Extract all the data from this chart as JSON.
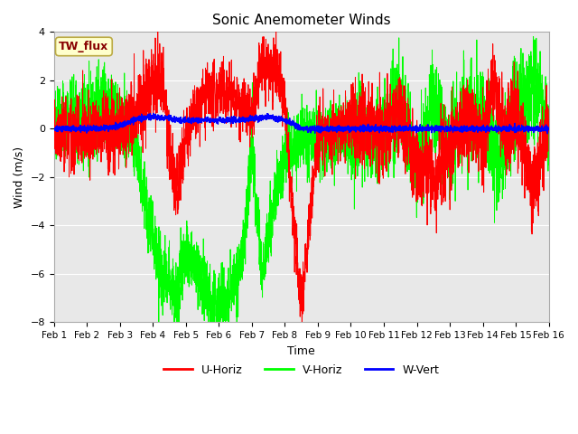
{
  "title": "Sonic Anemometer Winds",
  "xlabel": "Time",
  "ylabel": "Wind (m/s)",
  "ylim": [
    -8,
    4
  ],
  "yticks": [
    -8,
    -6,
    -4,
    -2,
    0,
    2,
    4
  ],
  "xtick_labels": [
    "Feb 1",
    "Feb 2",
    "Feb 3",
    "Feb 4",
    "Feb 5",
    "Feb 6",
    "Feb 7",
    "Feb 8",
    "Feb 9",
    "Feb 10",
    "Feb 11",
    "Feb 12",
    "Feb 13",
    "Feb 14",
    "Feb 15",
    "Feb 16"
  ],
  "legend_labels": [
    "U-Horiz",
    "V-Horiz",
    "W-Vert"
  ],
  "legend_colors": [
    "red",
    "lime",
    "blue"
  ],
  "box_label": "TW_flux",
  "box_facecolor": "#ffffcc",
  "box_edgecolor": "#bbaa44",
  "box_textcolor": "#880000",
  "background_color": "#e8e8e8",
  "u_color": "red",
  "v_color": "lime",
  "w_color": "blue",
  "n_points": 3600,
  "seed": 42
}
